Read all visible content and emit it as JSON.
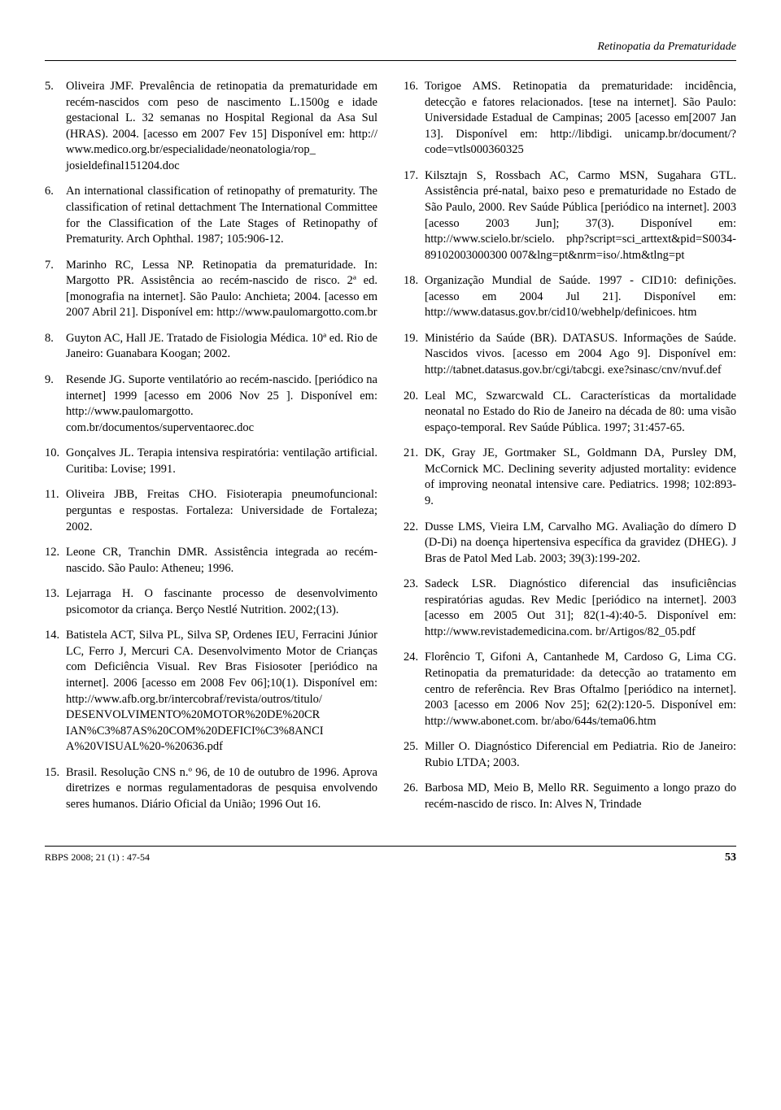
{
  "runningHead": "Retinopatia da Prematuridade",
  "leftRefs": [
    {
      "n": "5.",
      "t": "Oliveira JMF. Prevalência de retinopatia da prematuridade em recém-nascidos com peso de nascimento L.1500g e idade gestacional L. 32 semanas no Hospital Regional da Asa Sul (HRAS). 2004. [acesso em 2007 Fev 15] Disponível em: http:// www.medico.org.br/especialidade/neonatologia/rop_ josieldefinal151204.doc"
    },
    {
      "n": "6.",
      "t": "An international classification of retinopathy of prematurity. The classification of retinal dettachment The International Committee for the Classification of the Late Stages of Retinopathy of Prematurity. Arch Ophthal. 1987; 105:906-12."
    },
    {
      "n": "7.",
      "t": "Marinho RC, Lessa NP. Retinopatia da prematuridade. In: Margotto PR. Assistência ao recém-nascido de risco. 2ª ed. [monografia na internet]. São Paulo: Anchieta; 2004. [acesso em 2007 Abril 21]. Disponível em: http://www.paulomargotto.com.br"
    },
    {
      "n": "8.",
      "t": "Guyton AC, Hall JE. Tratado de Fisiologia Médica. 10ª ed. Rio de Janeiro: Guanabara Koogan; 2002."
    },
    {
      "n": "9.",
      "t": "Resende JG. Suporte ventilatório ao recém-nascido. [periódico na internet] 1999 [acesso em 2006 Nov 25 ]. Disponível em: http://www.paulomargotto. com.br/documentos/superventaorec.doc"
    },
    {
      "n": "10.",
      "t": "Gonçalves JL. Terapia intensiva respiratória: ventilação artificial. Curitiba: Lovise; 1991."
    },
    {
      "n": "11.",
      "t": "Oliveira JBB, Freitas CHO. Fisioterapia pneumofuncional: perguntas e respostas. Fortaleza: Universidade de Fortaleza; 2002."
    },
    {
      "n": "12.",
      "t": "Leone CR, Tranchin DMR. Assistência integrada ao recém-nascido. São Paulo: Atheneu; 1996."
    },
    {
      "n": "13.",
      "t": "Lejarraga H. O fascinante processo de desenvolvimento psicomotor da criança. Berço Nestlé Nutrition. 2002;(13)."
    },
    {
      "n": "14.",
      "t": "Batistela ACT, Silva PL, Silva SP, Ordenes IEU, Ferracini Júnior LC, Ferro J, Mercuri CA. Desenvolvimento Motor de Crianças com Deficiência Visual. Rev Bras Fisiosoter [periódico na internet]. 2006 [acesso em 2008 Fev 06];10(1). Disponível em: http://www.afb.org.br/intercobraf/revista/outros/titulo/ DESENVOLVIMENTO%20MOTOR%20DE%20CR IAN%C3%87AS%20COM%20DEFICI%C3%8ANCI A%20VISUAL%20-%20636.pdf"
    },
    {
      "n": "15.",
      "t": "Brasil. Resolução CNS n.º 96, de 10 de outubro de 1996. Aprova diretrizes e normas regulamentadoras de pesquisa envolvendo seres humanos. Diário Oficial da União; 1996 Out 16."
    }
  ],
  "rightRefs": [
    {
      "n": "16.",
      "t": "Torigoe AMS. Retinopatia da prematuridade: incidência, detecção e fatores relacionados. [tese na internet]. São Paulo: Universidade Estadual de Campinas; 2005 [acesso em[2007 Jan 13]. Disponível em: http://libdigi. unicamp.br/document/?code=vtls000360325"
    },
    {
      "n": "17.",
      "t": "Kilsztajn S, Rossbach AC, Carmo MSN, Sugahara GTL. Assistência pré-natal, baixo peso e prematuridade no Estado de São Paulo, 2000. Rev Saúde Pública [periódico na internet]. 2003 [acesso 2003 Jun]; 37(3). Disponível em: http://www.scielo.br/scielo. php?script=sci_arttext&pid=S0034-89102003000300 007&lng=pt&nrm=iso/.htm&tlng=pt"
    },
    {
      "n": "18.",
      "t": "Organização Mundial de Saúde. 1997 - CID10: definições. [acesso em 2004 Jul 21]. Disponível em: http://www.datasus.gov.br/cid10/webhelp/definicoes. htm"
    },
    {
      "n": "19.",
      "t": "Ministério da Saúde (BR). DATASUS. Informações de Saúde. Nascidos vivos. [acesso em 2004 Ago 9]. Disponível em: http://tabnet.datasus.gov.br/cgi/tabcgi. exe?sinasc/cnv/nvuf.def"
    },
    {
      "n": "20.",
      "t": "Leal MC, Szwarcwald CL. Características da mortalidade neonatal no Estado do Rio de Janeiro na década de 80: uma visão espaço-temporal. Rev Saúde Pública. 1997; 31:457-65."
    },
    {
      "n": "21.",
      "t": "DK, Gray JE, Gortmaker SL, Goldmann DA, Pursley DM, McCornick MC. Declining severity adjusted mortality: evidence of improving neonatal intensive care. Pediatrics. 1998; 102:893-9."
    },
    {
      "n": "22.",
      "t": "Dusse LMS, Vieira LM, Carvalho MG. Avaliação do dímero D (D-Di) na doença hipertensiva específica da gravidez (DHEG). J Bras de Patol Med Lab. 2003; 39(3):199-202."
    },
    {
      "n": "23.",
      "t": "Sadeck LSR. Diagnóstico diferencial das insuficiências respiratórias agudas. Rev Medic [periódico na internet]. 2003 [acesso em 2005 Out 31]; 82(1-4):40-5. Disponível em: http://www.revistademedicina.com. br/Artigos/82_05.pdf"
    },
    {
      "n": "24.",
      "t": "Florêncio T, Gifoni A, Cantanhede M, Cardoso G, Lima CG. Retinopatia da prematuridade: da detecção ao tratamento em centro de referência. Rev Bras Oftalmo [periódico na internet]. 2003 [acesso em 2006 Nov 25]; 62(2):120-5. Disponível em: http://www.abonet.com. br/abo/644s/tema06.htm"
    },
    {
      "n": "25.",
      "t": "Miller O. Diagnóstico Diferencial em Pediatria. Rio de Janeiro: Rubio LTDA; 2003."
    },
    {
      "n": "26.",
      "t": "Barbosa MD, Meio B, Mello RR. Seguimento a longo prazo do recém-nascido de risco. In: Alves N, Trindade"
    }
  ],
  "footerLeft": "RBPS 2008; 21 (1) : 47-54",
  "footerRight": "53"
}
